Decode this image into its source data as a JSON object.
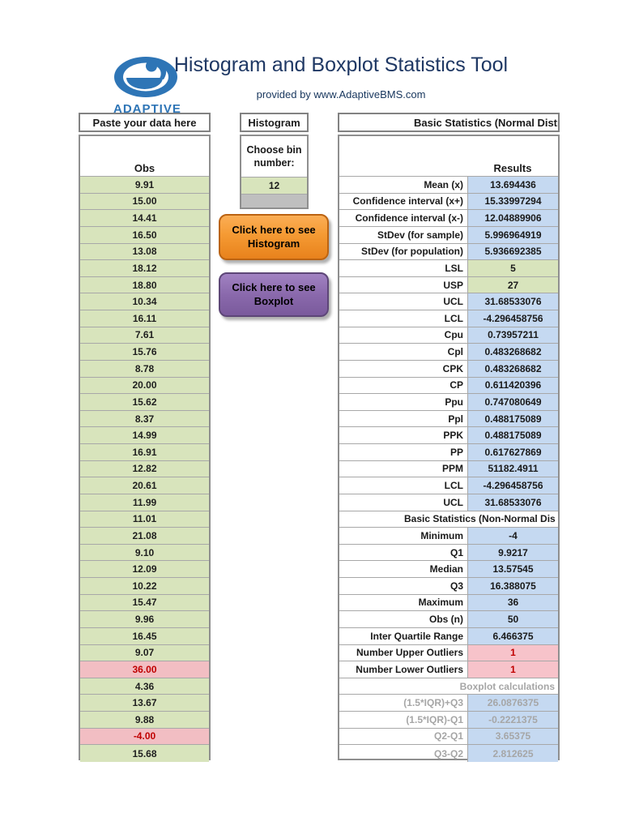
{
  "header": {
    "title": "Histogram and Boxplot Statistics Tool",
    "subtitle": "provided by www.AdaptiveBMS.com",
    "logo_text": "ADAPTIVE"
  },
  "colors": {
    "title_navy": "#1F3864",
    "logo_blue": "#2E75B6",
    "cell_green": "#D8E4BC",
    "cell_blue": "#C5D9F1",
    "outlier_pink": "#F2BEC3",
    "outlier_red": "#C00000",
    "muted_gray": "#A6A6A6",
    "button_orange": "#F59A33",
    "button_purple": "#8A69AC",
    "spare_gray": "#BFBFBF"
  },
  "data_table": {
    "header": "Paste your data here",
    "column_label": "Obs",
    "rows": [
      {
        "value": "9.91",
        "outlier": false
      },
      {
        "value": "15.00",
        "outlier": false
      },
      {
        "value": "14.41",
        "outlier": false
      },
      {
        "value": "16.50",
        "outlier": false
      },
      {
        "value": "13.08",
        "outlier": false
      },
      {
        "value": "18.12",
        "outlier": false
      },
      {
        "value": "18.80",
        "outlier": false
      },
      {
        "value": "10.34",
        "outlier": false
      },
      {
        "value": "16.11",
        "outlier": false
      },
      {
        "value": "7.61",
        "outlier": false
      },
      {
        "value": "15.76",
        "outlier": false
      },
      {
        "value": "8.78",
        "outlier": false
      },
      {
        "value": "20.00",
        "outlier": false
      },
      {
        "value": "15.62",
        "outlier": false
      },
      {
        "value": "8.37",
        "outlier": false
      },
      {
        "value": "14.99",
        "outlier": false
      },
      {
        "value": "16.91",
        "outlier": false
      },
      {
        "value": "12.82",
        "outlier": false
      },
      {
        "value": "20.61",
        "outlier": false
      },
      {
        "value": "11.99",
        "outlier": false
      },
      {
        "value": "11.01",
        "outlier": false
      },
      {
        "value": "21.08",
        "outlier": false
      },
      {
        "value": "9.10",
        "outlier": false
      },
      {
        "value": "12.09",
        "outlier": false
      },
      {
        "value": "10.22",
        "outlier": false
      },
      {
        "value": "15.47",
        "outlier": false
      },
      {
        "value": "9.96",
        "outlier": false
      },
      {
        "value": "16.45",
        "outlier": false
      },
      {
        "value": "9.07",
        "outlier": false
      },
      {
        "value": "36.00",
        "outlier": true
      },
      {
        "value": "4.36",
        "outlier": false
      },
      {
        "value": "13.67",
        "outlier": false
      },
      {
        "value": "9.88",
        "outlier": false
      },
      {
        "value": "-4.00",
        "outlier": true
      },
      {
        "value": "15.68",
        "outlier": false
      }
    ]
  },
  "histogram_box": {
    "header": "Histogram",
    "prompt_line1": "Choose bin",
    "prompt_line2": "number:",
    "bin_number": "12"
  },
  "buttons": {
    "histogram": {
      "line1": "Click here to see",
      "line2": "Histogram"
    },
    "boxplot": {
      "line1": "Click here to see",
      "line2": "Boxplot"
    }
  },
  "stats_panel": {
    "header": "Basic Statistics (Normal Distr",
    "results_label": "Results",
    "rows": [
      {
        "label": "Mean (x)",
        "value": "13.694436",
        "style": "blue"
      },
      {
        "label": "Confidence interval (x+)",
        "value": "15.33997294",
        "style": "blue"
      },
      {
        "label": "Confidence interval (x-)",
        "value": "12.04889906",
        "style": "blue"
      },
      {
        "label": "StDev (for sample)",
        "value": "5.996964919",
        "style": "blue"
      },
      {
        "label": "StDev (for population)",
        "value": "5.936692385",
        "style": "blue"
      },
      {
        "label": "LSL",
        "value": "5",
        "style": "green"
      },
      {
        "label": "USP",
        "value": "27",
        "style": "green"
      },
      {
        "label": "UCL",
        "value": "31.68533076",
        "style": "blue"
      },
      {
        "label": "LCL",
        "value": "-4.296458756",
        "style": "blue"
      },
      {
        "label": "Cpu",
        "value": "0.73957211",
        "style": "blue"
      },
      {
        "label": "Cpl",
        "value": "0.483268682",
        "style": "blue"
      },
      {
        "label": "CPK",
        "value": "0.483268682",
        "style": "blue"
      },
      {
        "label": "CP",
        "value": "0.611420396",
        "style": "blue"
      },
      {
        "label": "Ppu",
        "value": "0.747080649",
        "style": "blue"
      },
      {
        "label": "Ppl",
        "value": "0.488175089",
        "style": "blue"
      },
      {
        "label": "PPK",
        "value": "0.488175089",
        "style": "blue"
      },
      {
        "label": "PP",
        "value": "0.617627869",
        "style": "blue"
      },
      {
        "label": "PPM",
        "value": "51182.4911",
        "style": "blue"
      },
      {
        "label": "LCL",
        "value": "-4.296458756",
        "style": "blue"
      },
      {
        "label": "UCL",
        "value": "31.68533076",
        "style": "blue"
      },
      {
        "section": "Basic Statistics (Non-Normal Dis",
        "align": "left",
        "muted": false
      },
      {
        "label": "Minimum",
        "value": "-4",
        "style": "blue"
      },
      {
        "label": "Q1",
        "value": "9.9217",
        "style": "blue"
      },
      {
        "label": "Median",
        "value": "13.57545",
        "style": "blue"
      },
      {
        "label": "Q3",
        "value": "16.388075",
        "style": "blue"
      },
      {
        "label": "Maximum",
        "value": "36",
        "style": "blue"
      },
      {
        "label": "Obs (n)",
        "value": "50",
        "style": "blue"
      },
      {
        "label": "Inter Quartile Range",
        "value": "6.466375",
        "style": "blue"
      },
      {
        "label": "Number Upper Outliers",
        "value": "1",
        "style": "pink"
      },
      {
        "label": "Number Lower Outliers",
        "value": "1",
        "style": "pink"
      },
      {
        "section": "Boxplot calculations",
        "align": "right",
        "muted": true
      },
      {
        "label": "(1.5*IQR)+Q3",
        "value": "26.0876375",
        "style": "blue",
        "muted": true
      },
      {
        "label": "(1.5*IQR)-Q1",
        "value": "-0.2221375",
        "style": "blue",
        "muted": true
      },
      {
        "label": "Q2-Q1",
        "value": "3.65375",
        "style": "blue",
        "muted": true
      },
      {
        "label": "Q3-Q2",
        "value": "2.812625",
        "style": "blue",
        "muted": true
      }
    ]
  }
}
